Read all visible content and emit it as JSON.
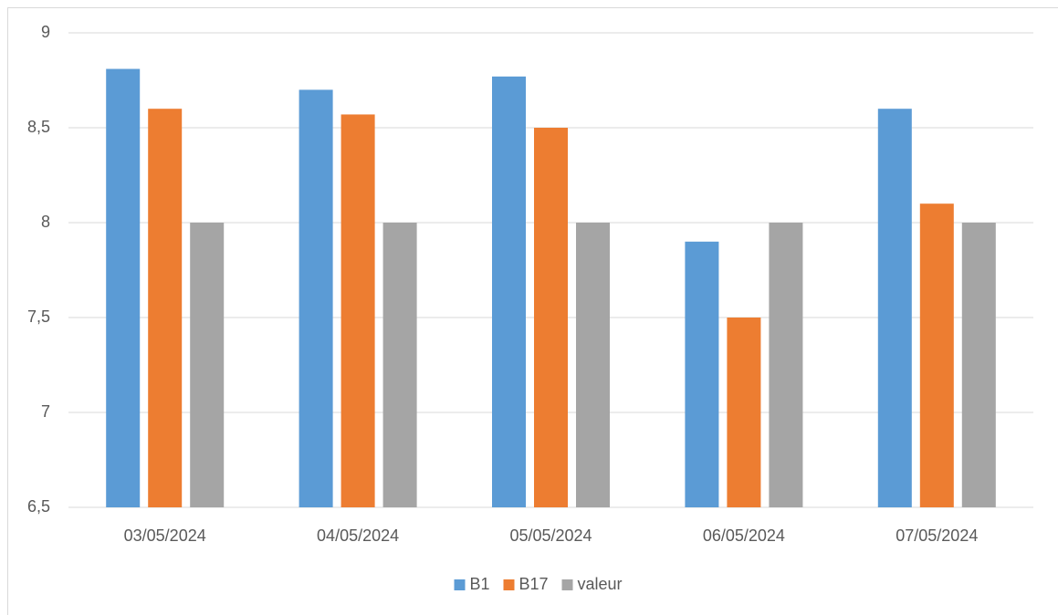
{
  "chart_data": {
    "type": "bar",
    "categories": [
      "03/05/2024",
      "04/05/2024",
      "05/05/2024",
      "06/05/2024",
      "07/05/2024"
    ],
    "series": [
      {
        "name": "B1",
        "color": "#5b9bd5",
        "values": [
          8.81,
          8.7,
          8.77,
          7.9,
          8.6
        ]
      },
      {
        "name": "B17",
        "color": "#ed7d31",
        "values": [
          8.6,
          8.57,
          8.5,
          7.5,
          8.1
        ]
      },
      {
        "name": "valeur",
        "color": "#a5a5a5",
        "values": [
          8,
          8,
          8,
          8,
          8
        ]
      }
    ],
    "ylim": [
      6.5,
      9
    ],
    "yticks": [
      {
        "value": 6.5,
        "label": "6,5"
      },
      7,
      {
        "value": 7.5,
        "label": "7,5"
      },
      8,
      {
        "value": 8.5,
        "label": "8,5"
      },
      9
    ],
    "grid": true,
    "legend": "bottom"
  }
}
